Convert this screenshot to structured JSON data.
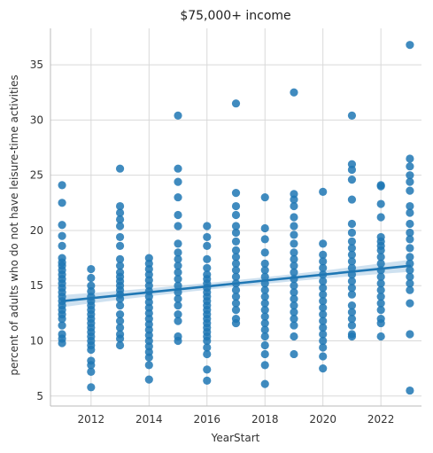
{
  "chart_data": {
    "type": "scatter",
    "title": "$75,000+ income",
    "xlabel": "YearStart",
    "ylabel": "percent of adults who do not have leisure-time activities",
    "xlim": [
      2010.6,
      2023.4
    ],
    "ylim": [
      4.1,
      38.3
    ],
    "xticks": [
      2012,
      2014,
      2016,
      2018,
      2020,
      2022
    ],
    "yticks": [
      5,
      10,
      15,
      20,
      25,
      30,
      35
    ],
    "grid": true,
    "colors": {
      "points": "#1f77b4",
      "line": "#1f77b4",
      "band": "#a6c8e4",
      "grid": "#d9d9d9",
      "axis": "#bbbbbb"
    },
    "regression": {
      "x0": 2011,
      "y0": 13.6,
      "x1": 2023,
      "y1": 16.8,
      "ci_halfwidth_ends": 0.55,
      "ci_halfwidth_mid": 0.3
    },
    "points": [
      {
        "x": 2011,
        "y": [
          24.1,
          22.5,
          20.5,
          19.5,
          18.6,
          17.5,
          17.1,
          16.8,
          16.4,
          16.0,
          15.6,
          15.2,
          14.8,
          14.4,
          14.0,
          13.6,
          13.2,
          12.8,
          12.4,
          12.0,
          11.4,
          10.6,
          10.2,
          9.8
        ]
      },
      {
        "x": 2012,
        "y": [
          16.5,
          15.7,
          15.0,
          14.5,
          14.0,
          13.6,
          13.2,
          12.8,
          12.4,
          12.0,
          11.6,
          11.2,
          10.8,
          10.4,
          10.0,
          9.6,
          9.2,
          8.2,
          7.8,
          7.2,
          5.8
        ]
      },
      {
        "x": 2013,
        "y": [
          25.6,
          22.2,
          21.6,
          21.0,
          20.4,
          19.4,
          18.6,
          17.4,
          16.8,
          16.2,
          15.8,
          15.4,
          15.0,
          14.6,
          14.2,
          13.8,
          13.2,
          12.4,
          11.8,
          11.2,
          10.6,
          10.2,
          9.6
        ]
      },
      {
        "x": 2014,
        "y": [
          17.5,
          17.0,
          16.5,
          16.0,
          15.5,
          15.0,
          14.5,
          14.0,
          13.5,
          13.0,
          12.5,
          12.0,
          11.5,
          11.0,
          10.5,
          10.0,
          9.5,
          9.0,
          8.5,
          7.8,
          6.5
        ]
      },
      {
        "x": 2015,
        "y": [
          30.4,
          25.6,
          24.4,
          23.0,
          21.4,
          20.4,
          18.8,
          18.0,
          17.4,
          16.8,
          16.2,
          15.6,
          15.0,
          14.4,
          13.8,
          13.2,
          12.4,
          11.8,
          10.4,
          10.0
        ]
      },
      {
        "x": 2016,
        "y": [
          20.4,
          19.4,
          18.6,
          17.4,
          16.6,
          16.0,
          15.6,
          15.2,
          14.8,
          14.4,
          14.0,
          13.6,
          13.2,
          12.8,
          12.4,
          12.0,
          11.6,
          11.2,
          10.8,
          10.4,
          10.0,
          9.4,
          8.8,
          7.4,
          6.4
        ]
      },
      {
        "x": 2017,
        "y": [
          31.5,
          23.4,
          22.2,
          21.4,
          20.4,
          19.8,
          19.0,
          18.2,
          17.6,
          17.0,
          16.4,
          15.8,
          15.2,
          14.6,
          14.0,
          13.4,
          12.8,
          12.0,
          11.6
        ]
      },
      {
        "x": 2018,
        "y": [
          23.0,
          20.2,
          19.2,
          18.0,
          17.0,
          16.4,
          15.8,
          15.2,
          14.6,
          14.0,
          13.4,
          12.8,
          12.2,
          11.6,
          11.0,
          10.4,
          9.6,
          8.8,
          7.8,
          6.1
        ]
      },
      {
        "x": 2019,
        "y": [
          32.5,
          23.3,
          22.8,
          22.2,
          21.2,
          20.4,
          19.6,
          18.8,
          18.0,
          17.4,
          16.8,
          16.2,
          15.6,
          15.0,
          14.4,
          13.8,
          13.2,
          12.6,
          12.0,
          11.4,
          10.4,
          8.8
        ]
      },
      {
        "x": 2020,
        "y": [
          23.5,
          18.8,
          17.8,
          17.2,
          16.6,
          16.0,
          15.4,
          14.8,
          14.2,
          13.6,
          13.0,
          12.4,
          11.8,
          11.2,
          10.6,
          10.0,
          9.4,
          8.6,
          7.5
        ]
      },
      {
        "x": 2021,
        "y": [
          30.4,
          26.0,
          25.5,
          24.6,
          22.8,
          20.6,
          19.8,
          19.0,
          18.4,
          17.8,
          17.2,
          16.6,
          16.0,
          15.4,
          14.8,
          14.2,
          13.2,
          12.6,
          12.0,
          11.4,
          10.6,
          10.4
        ]
      },
      {
        "x": 2022,
        "y": [
          24.1,
          24.0,
          22.4,
          21.2,
          19.4,
          19.0,
          18.6,
          18.2,
          17.6,
          17.0,
          16.4,
          15.8,
          15.2,
          14.6,
          14.0,
          13.4,
          12.8,
          12.0,
          11.6,
          10.4
        ]
      },
      {
        "x": 2023,
        "y": [
          36.8,
          26.5,
          25.8,
          25.0,
          24.4,
          23.6,
          22.2,
          21.6,
          20.6,
          19.8,
          19.2,
          18.4,
          17.6,
          17.0,
          16.4,
          15.8,
          15.2,
          14.6,
          13.4,
          10.6,
          5.5
        ]
      }
    ]
  }
}
